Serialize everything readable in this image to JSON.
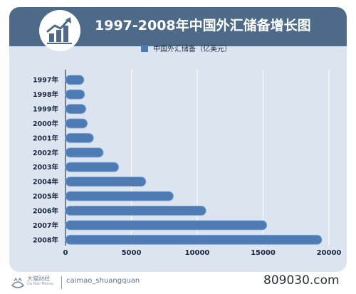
{
  "title": "1997-2008年中国外汇储备增长图",
  "footer": {
    "logo_text": "大猫财经",
    "logo_sub": "Da Mao Money",
    "handle": "caimao_shuangquan",
    "watermark": "809030.com"
  },
  "colors": {
    "banner": "#4d6a88",
    "card": "#dbe4ef",
    "bar": "#4f7bb5",
    "bar_edge": "#7ea3d4"
  },
  "icons": {
    "logo": "growth-chart-icon",
    "footer_logo": "cat-logo-icon"
  },
  "chart_data": {
    "type": "bar",
    "orientation": "horizontal",
    "title": "1997-2008年中国外汇储备增长图",
    "legend_position": "top",
    "categories": [
      "1997年",
      "1998年",
      "1999年",
      "2000年",
      "2001年",
      "2002年",
      "2003年",
      "2004年",
      "2005年",
      "2006年",
      "2007年",
      "2008年"
    ],
    "series": [
      {
        "name": "中国外汇储备（亿美元）",
        "values": [
          1399,
          1450,
          1547,
          1656,
          2122,
          2864,
          4033,
          6099,
          8189,
          10663,
          15282,
          19460
        ]
      }
    ],
    "xlim": [
      0,
      20000
    ],
    "xticks": [
      0,
      5000,
      10000,
      15000,
      20000
    ],
    "grid": true
  }
}
